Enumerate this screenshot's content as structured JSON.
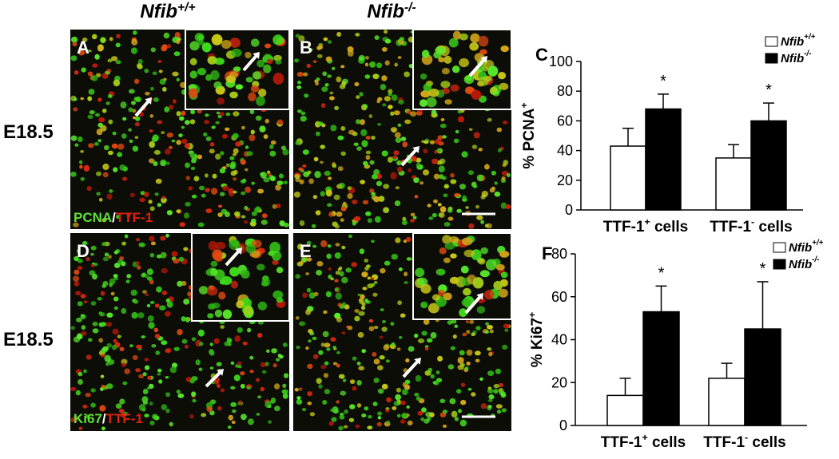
{
  "figure": {
    "columns": [
      "Nfib+/+",
      "Nfib-/-"
    ],
    "rows": [
      "E18.5",
      "E18.5"
    ],
    "panels": [
      "A",
      "B",
      "D",
      "E"
    ],
    "stains": [
      {
        "marker": "PCNA",
        "separator": "/",
        "target": "TTF-1"
      },
      {
        "marker": "Ki67",
        "separator": "/",
        "target": "TTF-1"
      }
    ]
  },
  "chart_data": [
    {
      "type": "bar",
      "label": "C",
      "ylabel": "% PCNA+",
      "categories": [
        "TTF-1+ cells",
        "TTF-1- cells"
      ],
      "series": [
        {
          "name": "Nfib+/+",
          "color": "#ffffff",
          "values": [
            43,
            35
          ],
          "errors": [
            12,
            9
          ]
        },
        {
          "name": "Nfib-/-",
          "color": "#000000",
          "values": [
            68,
            60
          ],
          "errors": [
            10,
            12
          ],
          "annotations": [
            "*",
            "*"
          ]
        }
      ],
      "ylim": [
        0,
        100
      ],
      "yticks": [
        0,
        20,
        40,
        60,
        80,
        100
      ]
    },
    {
      "type": "bar",
      "label": "F",
      "ylabel": "% Ki67+",
      "categories": [
        "TTF-1+ cells",
        "TTF-1- cells"
      ],
      "series": [
        {
          "name": "Nfib+/+",
          "color": "#ffffff",
          "values": [
            14,
            22
          ],
          "errors": [
            8,
            7
          ]
        },
        {
          "name": "Nfib-/-",
          "color": "#000000",
          "values": [
            53,
            45
          ],
          "errors": [
            12,
            22
          ],
          "annotations": [
            "*",
            "*"
          ]
        }
      ],
      "ylim": [
        0,
        80
      ],
      "yticks": [
        0,
        20,
        40,
        60,
        80
      ]
    }
  ]
}
